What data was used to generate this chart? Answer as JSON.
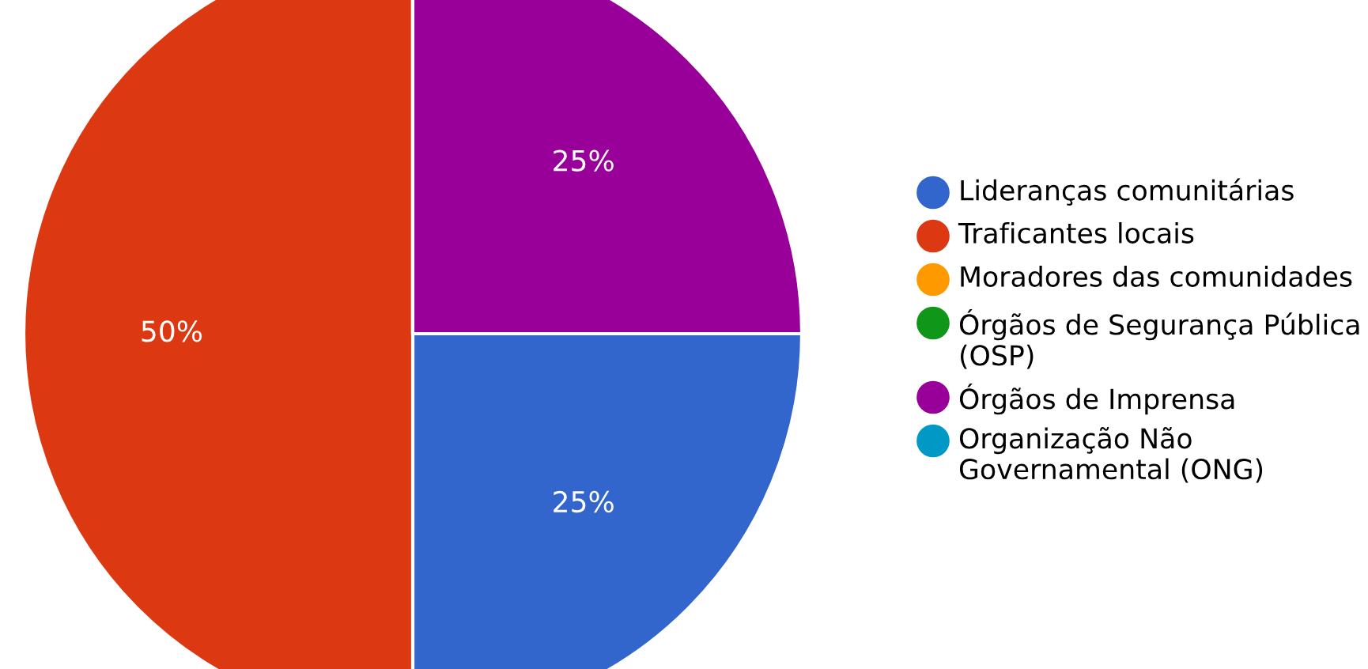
{
  "chart_data": {
    "type": "pie",
    "categories": [
      "Lideranças comunitárias",
      "Traficantes locais",
      "Moradores das comunidades",
      "Órgãos de Segurança Pública (OSP)",
      "Órgãos de Imprensa",
      "Organização Não Governamental (ONG)"
    ],
    "values": [
      25,
      50,
      0,
      0,
      25,
      0
    ],
    "colors": [
      "#3366cc",
      "#dc3912",
      "#ff9900",
      "#109618",
      "#990099",
      "#0099c6"
    ],
    "value_labels": [
      "25%",
      "50%",
      null,
      null,
      "25%",
      null
    ],
    "legend": "right"
  }
}
